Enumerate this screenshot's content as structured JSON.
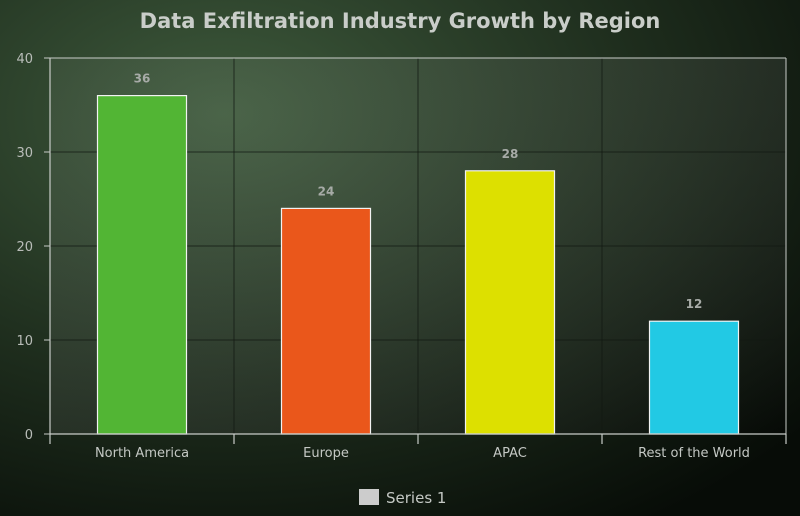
{
  "chart_data": {
    "type": "bar",
    "title": "Data Exfiltration Industry Growth by Region",
    "categories": [
      "North America",
      "Europe",
      "APAC",
      "Rest of the World"
    ],
    "series": [
      {
        "name": "Series 1",
        "values": [
          36,
          24,
          28,
          12
        ]
      }
    ],
    "data_labels": [
      "36",
      "24",
      "28",
      "12"
    ],
    "bar_colors": [
      "#52b534",
      "#ea571b",
      "#dde000",
      "#22c9e4"
    ],
    "ylim": [
      0,
      40
    ],
    "yticks": [
      "0",
      "10",
      "20",
      "30",
      "40"
    ],
    "grid": true,
    "legend": {
      "position": "bottom",
      "swatch_color": "#cccccc"
    }
  }
}
